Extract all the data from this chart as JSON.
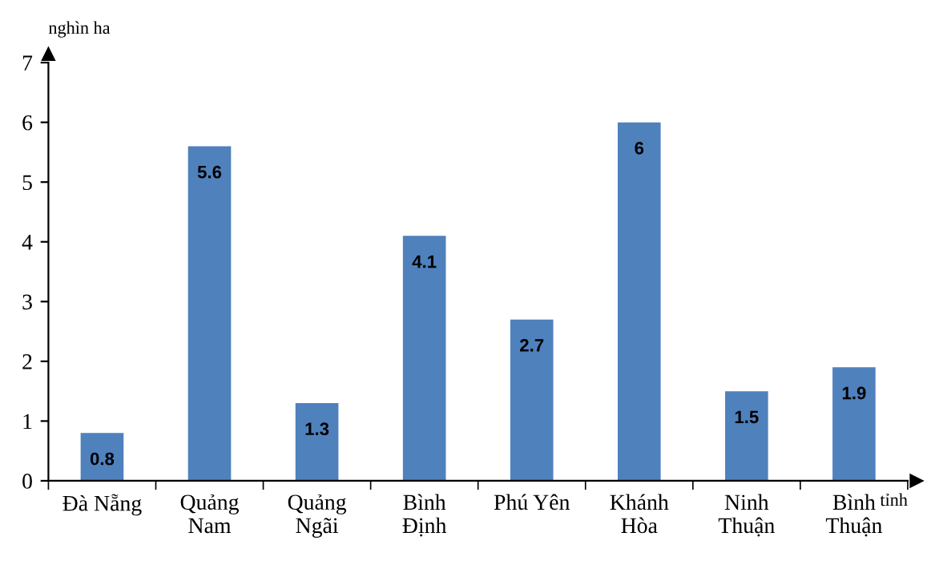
{
  "chart_data": {
    "type": "bar",
    "ylabel": "nghìn ha",
    "xlabel": "tỉnh",
    "categories": [
      "Đà Nẵng",
      "Quảng\nNam",
      "Quảng\nNgãi",
      "Bình\nĐịnh",
      "Phú Yên",
      "Khánh\nHòa",
      "Ninh\nThuận",
      "Bình\nThuận"
    ],
    "values": [
      0.8,
      5.6,
      1.3,
      4.1,
      2.7,
      6,
      1.5,
      1.9
    ],
    "color": "#4f81bd",
    "ylim": [
      0,
      7
    ],
    "yticks": [
      0,
      1,
      2,
      3,
      4,
      5,
      6,
      7
    ],
    "data_labels": true,
    "grid": false,
    "legend": false
  }
}
